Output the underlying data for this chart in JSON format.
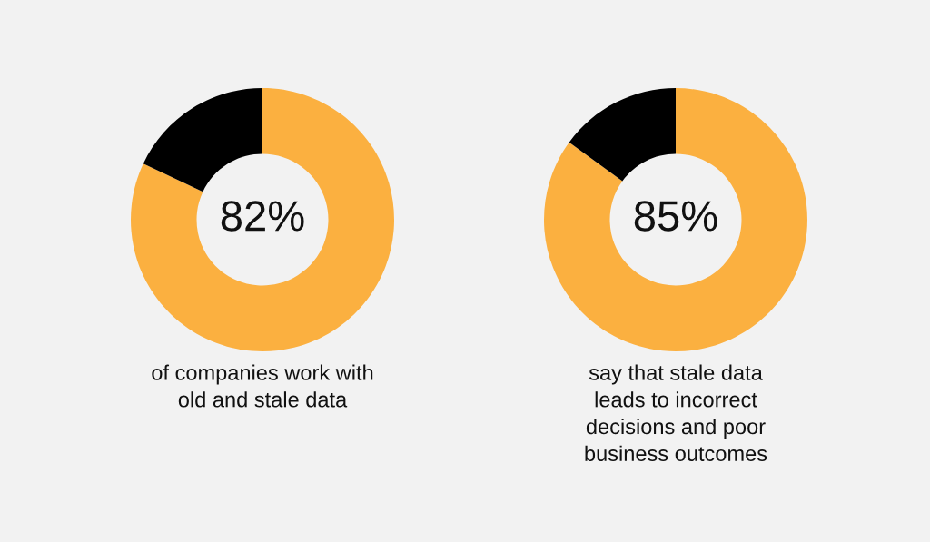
{
  "chart_data": [
    {
      "type": "donut",
      "categories": [
        null,
        null
      ],
      "values": [
        82,
        18
      ],
      "colors": [
        "#fbb040",
        "#000000"
      ],
      "value_labels": [
        "82%",
        null
      ],
      "annotations": [
        "of companies work with\nold and stale data"
      ]
    },
    {
      "type": "donut",
      "categories": [
        null,
        null
      ],
      "values": [
        85,
        15
      ],
      "colors": [
        "#fbb040",
        "#000000"
      ],
      "value_labels": [
        "85%",
        null
      ],
      "annotations": [
        "say that stale data\nleads to incorrect\ndecisions and poor\nbusiness outcomes"
      ]
    }
  ]
}
